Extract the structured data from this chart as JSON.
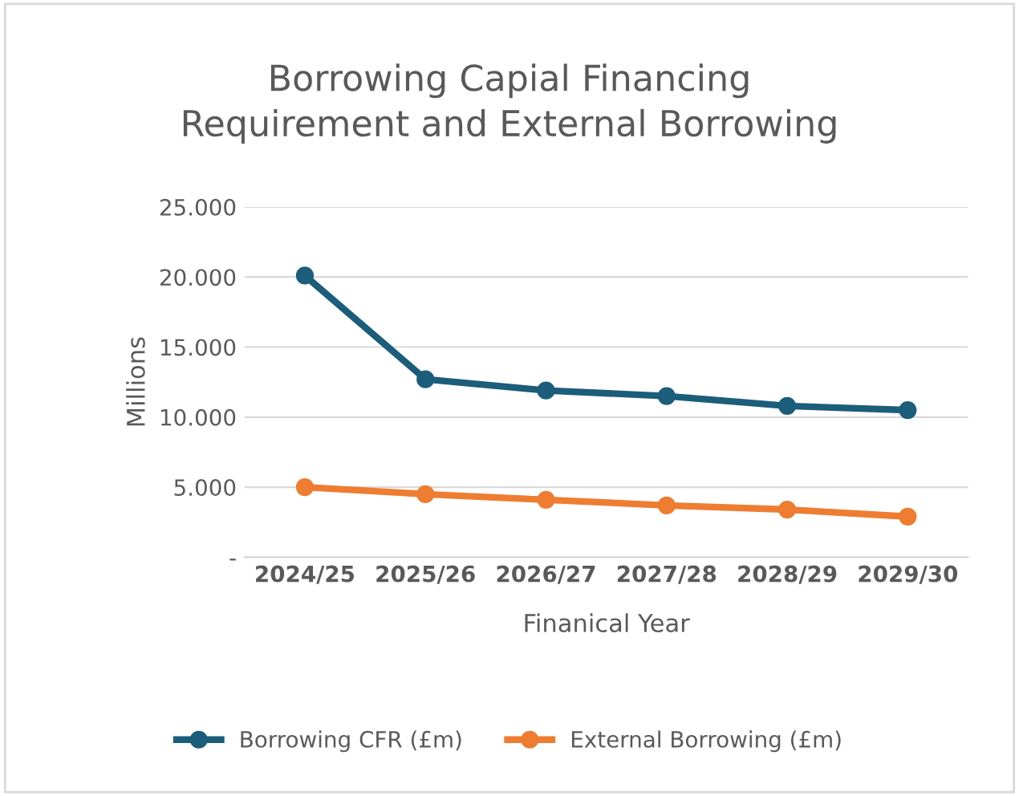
{
  "chart_data": {
    "type": "line",
    "title": "Borrowing Capial Financing\nRequirement and External Borrowing",
    "xlabel": "Finanical Year",
    "ylabel": "Millions",
    "categories": [
      "2024/25",
      "2025/26",
      "2026/27",
      "2027/28",
      "2028/29",
      "2029/30"
    ],
    "series": [
      {
        "name": "Borrowing CFR (£m)",
        "color": "#1b5d7a",
        "values": [
          20.1,
          12.7,
          11.9,
          11.5,
          10.8,
          10.5
        ]
      },
      {
        "name": "External Borrowing (£m)",
        "color": "#ee7d31",
        "values": [
          5.0,
          4.5,
          4.1,
          3.7,
          3.4,
          2.9
        ]
      }
    ],
    "ylim": [
      0,
      25
    ],
    "yticks": [
      {
        "value": 0,
        "label": "-"
      },
      {
        "value": 5,
        "label": "5.000"
      },
      {
        "value": 10,
        "label": "10.000"
      },
      {
        "value": 15,
        "label": "15.000"
      },
      {
        "value": 20,
        "label": "20.000"
      },
      {
        "value": 25,
        "label": "25.000"
      }
    ],
    "grid": "y",
    "legend": "bottom",
    "marker": "circle",
    "line_style": "solid"
  }
}
